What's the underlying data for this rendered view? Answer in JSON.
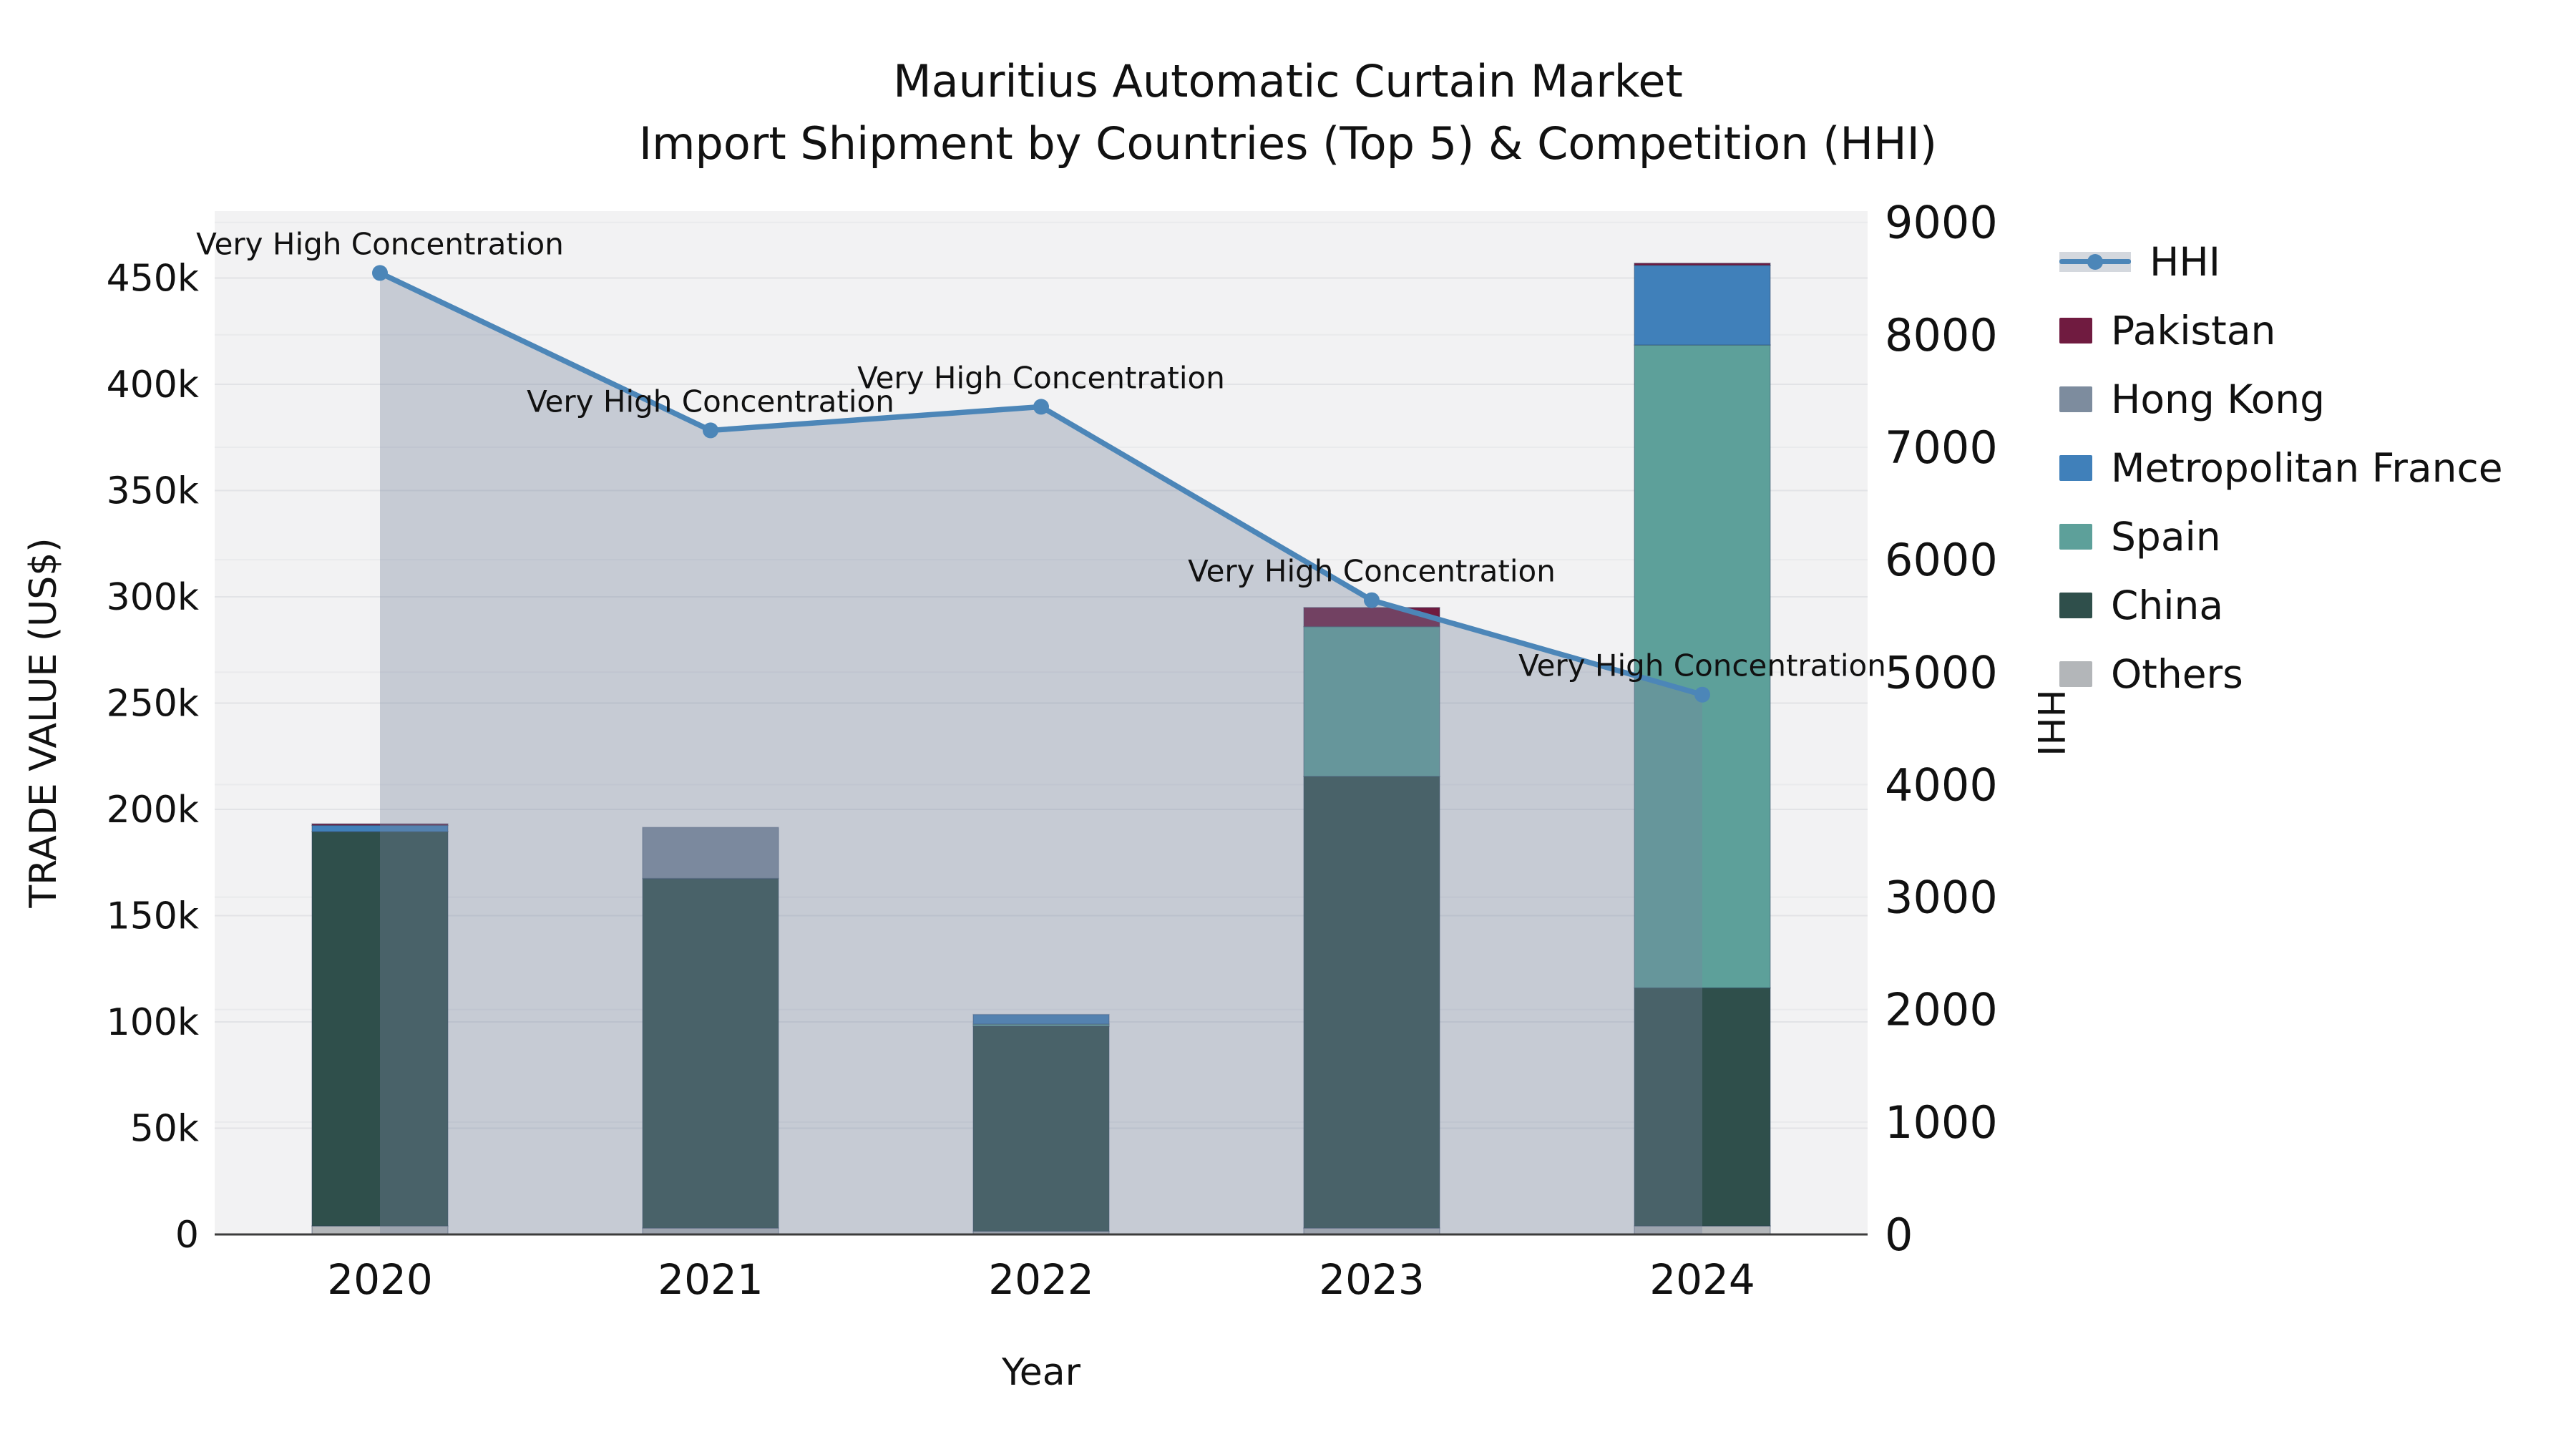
{
  "chart_data": {
    "type": "bar+line",
    "title_line1": "Mauritius Automatic Curtain Market",
    "title_line2": "Import Shipment by Countries (Top 5) & Competition (HHI)",
    "xlabel": "Year",
    "ylabel_left": "TRADE VALUE (US$)",
    "ylabel_right": "HHI",
    "categories": [
      "2020",
      "2021",
      "2022",
      "2023",
      "2024"
    ],
    "bar_series": [
      {
        "name": "Others",
        "color": "#b3b6b9",
        "values": [
          4000,
          3000,
          1500,
          3000,
          4000
        ]
      },
      {
        "name": "China",
        "color": "#2f4f4b",
        "values": [
          185500,
          164500,
          96500,
          212500,
          112000
        ]
      },
      {
        "name": "Spain",
        "color": "#5da09a",
        "values": [
          0,
          0,
          1000,
          70500,
          302500
        ]
      },
      {
        "name": "Metropolitan France",
        "color": "#4080ba",
        "values": [
          3000,
          0,
          4500,
          0,
          37500
        ]
      },
      {
        "name": "Hong Kong",
        "color": "#7d8c9e",
        "values": [
          0,
          24000,
          0,
          0,
          0
        ]
      },
      {
        "name": "Pakistan",
        "color": "#701b40",
        "values": [
          700,
          0,
          0,
          9000,
          1000
        ]
      }
    ],
    "line_series": {
      "name": "HHI",
      "color": "#4c86b8",
      "area_color": "rgba(118,134,158,0.36)",
      "values": [
        8550,
        7150,
        7360,
        5640,
        4800
      ]
    },
    "annotations": [
      {
        "year": "2020",
        "text": "Very High Concentration"
      },
      {
        "year": "2021",
        "text": "Very High Concentration"
      },
      {
        "year": "2022",
        "text": "Very High Concentration"
      },
      {
        "year": "2023",
        "text": "Very High Concentration"
      },
      {
        "year": "2024",
        "text": "Very High Concentration"
      }
    ],
    "y_left": {
      "min": 0,
      "max": 481500,
      "tick_step": 50000,
      "tick_labels": [
        "0",
        "50k",
        "100k",
        "150k",
        "200k",
        "250k",
        "300k",
        "350k",
        "400k",
        "450k"
      ]
    },
    "y_right": {
      "min": 0,
      "max": 9100,
      "tick_step": 1000,
      "tick_labels": [
        "0",
        "1000",
        "2000",
        "3000",
        "4000",
        "5000",
        "6000",
        "7000",
        "8000",
        "9000"
      ]
    },
    "legend": [
      {
        "label": "HHI",
        "color": "#4c86b8",
        "swatch": "line"
      },
      {
        "label": "Pakistan",
        "color": "#701b40",
        "swatch": "square"
      },
      {
        "label": "Hong Kong",
        "color": "#7d8c9e",
        "swatch": "square"
      },
      {
        "label": "Metropolitan France",
        "color": "#4080ba",
        "swatch": "square"
      },
      {
        "label": "Spain",
        "color": "#5da09a",
        "swatch": "square"
      },
      {
        "label": "China",
        "color": "#2f4f4b",
        "swatch": "square"
      },
      {
        "label": "Others",
        "color": "#b3b6b9",
        "swatch": "square"
      }
    ],
    "style": {
      "plot_bg": "#f2f2f3",
      "grid_left": "#e2e3e6",
      "grid_right": "#e9eaec",
      "axis_line": "#3c3c3c",
      "annotation_color": "#1a1a1a"
    }
  }
}
